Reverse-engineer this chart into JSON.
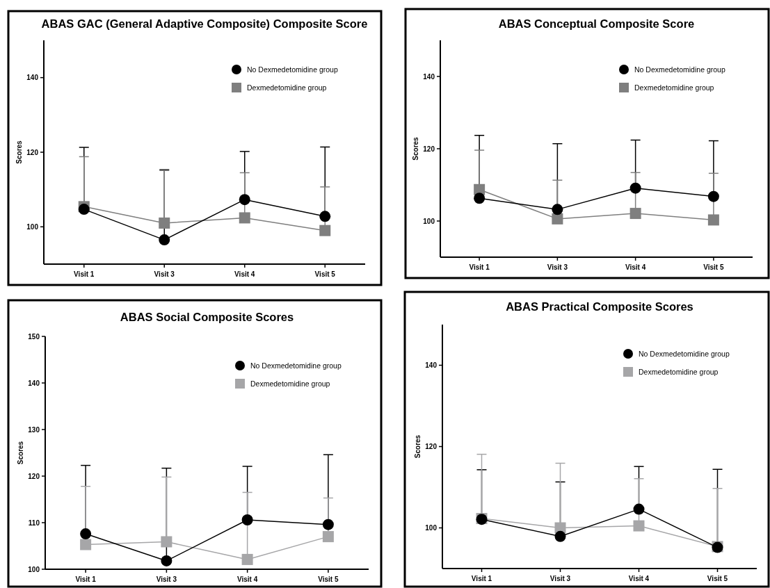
{
  "chart_data": [
    {
      "type": "line",
      "title": "ABAS GAC (General Adaptive Composite) Composite Score",
      "ylabel": "Scores",
      "categories": [
        "Visit 1",
        "Visit 3",
        "Visit 4",
        "Visit 5"
      ],
      "ylim": [
        90,
        150
      ],
      "yticks": [
        100,
        120,
        140
      ],
      "legend": "top right",
      "series": [
        {
          "name": "No Dexmedetomidine group",
          "color": "#000000",
          "marker": "circle",
          "values": [
            104.7,
            96.5,
            107.3,
            102.8
          ],
          "errors": [
            [
              104.7,
              121.3
            ],
            [
              96.5,
              115.3
            ],
            [
              107.3,
              120.2
            ],
            [
              102.8,
              121.4
            ]
          ]
        },
        {
          "name": "Dexmedetomidine group",
          "color": "#7f7f7f",
          "marker": "square",
          "values": [
            105.4,
            101.0,
            102.4,
            99.0
          ],
          "errors": [
            [
              105.4,
              118.8
            ],
            [
              101.0,
              115.1
            ],
            [
              102.4,
              114.5
            ],
            [
              99.0,
              110.7
            ]
          ]
        }
      ]
    },
    {
      "type": "line",
      "title": "ABAS Conceptual Composite Score",
      "ylabel": "Scores",
      "categories": [
        "Visit 1",
        "Visit 3",
        "Visit 4",
        "Visit 5"
      ],
      "ylim": [
        90,
        150
      ],
      "yticks": [
        100,
        120,
        140
      ],
      "legend": "top right",
      "series": [
        {
          "name": "No Dexmedetomidine group",
          "color": "#000000",
          "marker": "circle",
          "values": [
            106.3,
            103.2,
            109.1,
            106.8
          ],
          "errors": [
            [
              106.3,
              123.7
            ],
            [
              103.2,
              121.4
            ],
            [
              109.1,
              122.4
            ],
            [
              106.8,
              122.2
            ]
          ]
        },
        {
          "name": "Dexmedetomidine group",
          "color": "#7f7f7f",
          "marker": "square",
          "values": [
            108.7,
            100.6,
            102.1,
            100.3
          ],
          "errors": [
            [
              108.7,
              119.6
            ],
            [
              100.6,
              111.3
            ],
            [
              102.1,
              113.4
            ],
            [
              100.3,
              113.2
            ]
          ]
        }
      ]
    },
    {
      "type": "line",
      "title": "ABAS Social Composite Scores",
      "ylabel": "Scores",
      "categories": [
        "Visit 1",
        "Visit 3",
        "Visit 4",
        "Visit 5"
      ],
      "ylim": [
        100,
        150
      ],
      "yticks": [
        100,
        110,
        120,
        130,
        140,
        150
      ],
      "legend": "top right",
      "series": [
        {
          "name": "No Dexmedetomidine group",
          "color": "#000000",
          "marker": "circle",
          "values": [
            107.6,
            101.8,
            110.6,
            109.6
          ],
          "errors": [
            [
              107.6,
              122.3
            ],
            [
              101.8,
              121.7
            ],
            [
              110.6,
              122.1
            ],
            [
              109.6,
              124.6
            ]
          ]
        },
        {
          "name": "Dexmedetomidine group",
          "color": "#a6a6a8",
          "marker": "square",
          "values": [
            105.3,
            105.9,
            102.1,
            107.0
          ],
          "errors": [
            [
              105.3,
              117.8
            ],
            [
              105.9,
              119.8
            ],
            [
              102.1,
              116.5
            ],
            [
              107.0,
              115.3
            ]
          ]
        }
      ]
    },
    {
      "type": "line",
      "title": "ABAS Practical Composite Scores",
      "ylabel": "Scores",
      "categories": [
        "Visit 1",
        "Visit 3",
        "Visit 4",
        "Visit 5"
      ],
      "ylim": [
        90,
        150
      ],
      "yticks": [
        100,
        120,
        140
      ],
      "legend": "top right",
      "series": [
        {
          "name": "No Dexmedetomidine group",
          "color": "#000000",
          "marker": "circle",
          "values": [
            102.1,
            97.9,
            104.6,
            95.2
          ],
          "errors": [
            [
              102.1,
              114.3
            ],
            [
              97.9,
              111.3
            ],
            [
              104.6,
              115.1
            ],
            [
              95.2,
              114.4
            ]
          ]
        },
        {
          "name": "Dexmedetomidine group",
          "color": "#a6a6a8",
          "marker": "square",
          "values": [
            102.3,
            100.0,
            100.5,
            95.4
          ],
          "errors": [
            [
              102.3,
              118.1
            ],
            [
              100.0,
              115.9
            ],
            [
              100.5,
              112.1
            ],
            [
              95.4,
              109.7
            ]
          ]
        }
      ]
    }
  ]
}
